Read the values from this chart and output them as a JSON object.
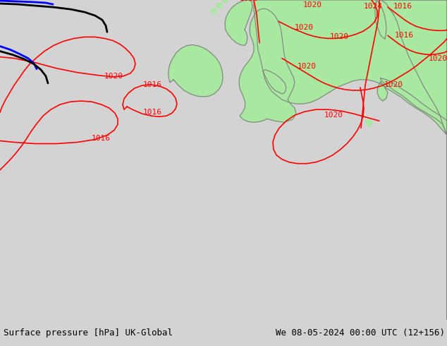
{
  "title_left": "Surface pressure [hPa] UK-Global",
  "title_right": "We 08-05-2024 00:00 UTC (12+156)",
  "bg_color": "#d3d3d3",
  "land_color": "#a8e8a0",
  "contour_color": "#ff0000",
  "label_fontsize": 8,
  "footer_fontsize": 9,
  "figwidth": 6.34,
  "figheight": 4.9,
  "dpi": 100,
  "coastline_color": "#808080",
  "front_black": "#000000",
  "front_blue": "#0000ff"
}
